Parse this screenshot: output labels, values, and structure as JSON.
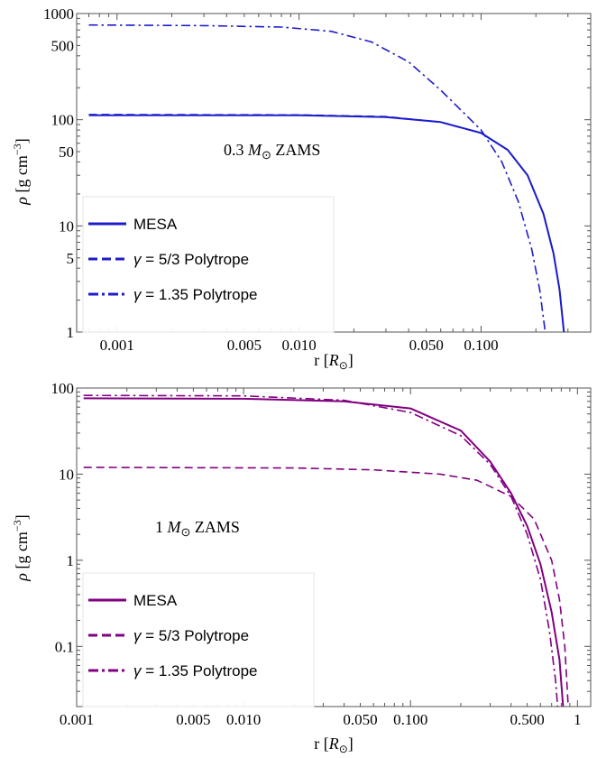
{
  "chart_data": [
    {
      "type": "line",
      "xscale": "log",
      "yscale": "log",
      "xlim": [
        0.0006,
        0.4
      ],
      "ylim": [
        1,
        1000
      ],
      "xlabel_parts": {
        "prefix": "r [",
        "sym": "R",
        "sub": "⊙",
        "suffix": "]"
      },
      "ylabel_parts": {
        "rho": "ρ",
        "units": " [g cm",
        "exp": "−3",
        "close": "]"
      },
      "x_ticks": [
        {
          "v": 0.001,
          "label": "0.001"
        },
        {
          "v": 0.005,
          "label": "0.005"
        },
        {
          "v": 0.01,
          "label": "0.010"
        },
        {
          "v": 0.05,
          "label": "0.050"
        },
        {
          "v": 0.1,
          "label": "0.100"
        }
      ],
      "y_ticks": [
        {
          "v": 1,
          "label": "1"
        },
        {
          "v": 5,
          "label": "5"
        },
        {
          "v": 10,
          "label": "10"
        },
        {
          "v": 50,
          "label": "50"
        },
        {
          "v": 100,
          "label": "100"
        },
        {
          "v": 500,
          "label": "500"
        },
        {
          "v": 1000,
          "label": "1000"
        }
      ],
      "annotation": {
        "prefix": "0.3 ",
        "sym": "M",
        "sub": "⊙",
        "suffix": " ZAMS"
      },
      "color": "#1c1ccc",
      "legend_position": "bottom-left",
      "series": [
        {
          "name": "MESA",
          "dash": "solid",
          "points": [
            [
              0.0007,
              110
            ],
            [
              0.01,
              110
            ],
            [
              0.03,
              106
            ],
            [
              0.06,
              95
            ],
            [
              0.1,
              75
            ],
            [
              0.14,
              52
            ],
            [
              0.18,
              30
            ],
            [
              0.22,
              13
            ],
            [
              0.25,
              5.5
            ],
            [
              0.27,
              2.5
            ],
            [
              0.285,
              1
            ]
          ]
        },
        {
          "name": "γ = 5/3 Polytrope",
          "dash": "dashed",
          "points": [
            [
              0.0007,
              112
            ],
            [
              0.01,
              111
            ],
            [
              0.03,
              107
            ],
            [
              0.06,
              95
            ],
            [
              0.1,
              75
            ],
            [
              0.14,
              52
            ],
            [
              0.18,
              30
            ],
            [
              0.22,
              13
            ],
            [
              0.25,
              5.5
            ],
            [
              0.27,
              2.5
            ],
            [
              0.285,
              1
            ]
          ]
        },
        {
          "name": "γ = 1.35 Polytrope",
          "dash": "dashdot",
          "points": [
            [
              0.0007,
              780
            ],
            [
              0.003,
              770
            ],
            [
              0.008,
              745
            ],
            [
              0.015,
              680
            ],
            [
              0.025,
              540
            ],
            [
              0.04,
              350
            ],
            [
              0.06,
              190
            ],
            [
              0.1,
              80
            ],
            [
              0.13,
              40
            ],
            [
              0.16,
              17
            ],
            [
              0.19,
              6
            ],
            [
              0.21,
              2.5
            ],
            [
              0.225,
              1
            ]
          ]
        }
      ]
    },
    {
      "type": "line",
      "xscale": "log",
      "yscale": "log",
      "xlim": [
        0.001,
        1.2
      ],
      "ylim": [
        0.02,
        100
      ],
      "xlabel_parts": {
        "prefix": "r [",
        "sym": "R",
        "sub": "⊙",
        "suffix": "]"
      },
      "ylabel_parts": {
        "rho": "ρ",
        "units": " [g cm",
        "exp": "−3",
        "close": "]"
      },
      "x_ticks": [
        {
          "v": 0.001,
          "label": "0.001"
        },
        {
          "v": 0.005,
          "label": "0.005"
        },
        {
          "v": 0.01,
          "label": "0.010"
        },
        {
          "v": 0.05,
          "label": "0.050"
        },
        {
          "v": 0.1,
          "label": "0.100"
        },
        {
          "v": 0.5,
          "label": "0.500"
        },
        {
          "v": 1,
          "label": "1"
        }
      ],
      "y_ticks": [
        {
          "v": 0.1,
          "label": "0.1"
        },
        {
          "v": 1,
          "label": "1"
        },
        {
          "v": 10,
          "label": "10"
        },
        {
          "v": 100,
          "label": "100"
        }
      ],
      "annotation": {
        "prefix": "1 ",
        "sym": "M",
        "sub": "⊙",
        "suffix": " ZAMS"
      },
      "color": "#800080",
      "legend_position": "bottom-left",
      "series": [
        {
          "name": "MESA",
          "dash": "solid",
          "points": [
            [
              0.0011,
              76
            ],
            [
              0.01,
              75
            ],
            [
              0.04,
              70
            ],
            [
              0.1,
              58
            ],
            [
              0.2,
              32
            ],
            [
              0.3,
              14
            ],
            [
              0.4,
              6
            ],
            [
              0.5,
              2.5
            ],
            [
              0.6,
              0.9
            ],
            [
              0.7,
              0.25
            ],
            [
              0.78,
              0.07
            ],
            [
              0.82,
              0.02
            ]
          ]
        },
        {
          "name": "γ = 5/3 Polytrope",
          "dash": "dashed",
          "points": [
            [
              0.0011,
              12
            ],
            [
              0.02,
              11.8
            ],
            [
              0.06,
              11.2
            ],
            [
              0.15,
              10
            ],
            [
              0.25,
              8.5
            ],
            [
              0.4,
              5.5
            ],
            [
              0.55,
              3
            ],
            [
              0.7,
              1
            ],
            [
              0.78,
              0.35
            ],
            [
              0.84,
              0.1
            ],
            [
              0.88,
              0.02
            ]
          ]
        },
        {
          "name": "γ = 1.35 Polytrope",
          "dash": "dashdot",
          "points": [
            [
              0.0011,
              82
            ],
            [
              0.01,
              81
            ],
            [
              0.04,
              72
            ],
            [
              0.1,
              52
            ],
            [
              0.2,
              28
            ],
            [
              0.3,
              13
            ],
            [
              0.4,
              5.5
            ],
            [
              0.5,
              2
            ],
            [
              0.6,
              0.6
            ],
            [
              0.68,
              0.15
            ],
            [
              0.74,
              0.04
            ],
            [
              0.76,
              0.02
            ]
          ]
        }
      ]
    }
  ]
}
